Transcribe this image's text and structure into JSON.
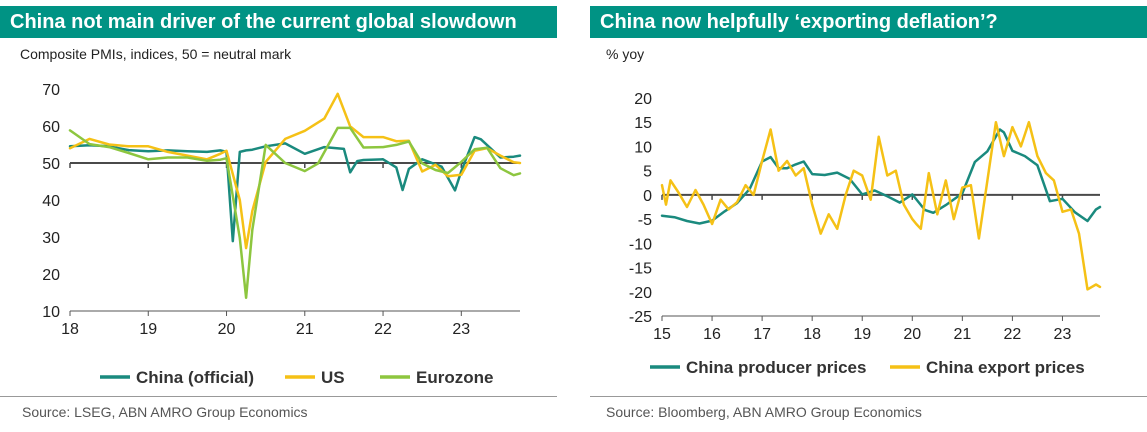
{
  "left": {
    "title": "China not main driver of the current global slowdown",
    "subtitle": "Composite PMIs, indices, 50 = neutral mark",
    "source": "Source: LSEG, ABN AMRO Group Economics"
  },
  "right": {
    "title": "China now helpfully ‘exporting deflation’?",
    "subtitle": "% yoy",
    "source": "Source: Bloomberg, ABN AMRO Group Economics"
  },
  "colors": {
    "header": "#009384",
    "teal": "#1a8a7e",
    "yellow": "#f5c116",
    "green": "#8dc63f",
    "axis": "#555555"
  },
  "chart_data": [
    {
      "type": "line",
      "title": "China not main driver of the current global slowdown",
      "subtitle": "Composite PMIs, indices, 50 = neutral mark",
      "ylim": [
        10,
        70
      ],
      "xlim": [
        2018,
        2023.75
      ],
      "yticks": [
        10,
        20,
        30,
        40,
        50,
        60,
        70
      ],
      "xtick_labels": [
        "18",
        "19",
        "20",
        "21",
        "22",
        "23"
      ],
      "reference_line": 50,
      "legend": "bottom",
      "grid": false,
      "series": [
        {
          "name": "China (official)",
          "color": "#1a8a7e",
          "x": [
            2018.0,
            2018.25,
            2018.5,
            2018.75,
            2019.0,
            2019.25,
            2019.5,
            2019.75,
            2019.92,
            2020.0,
            2020.08,
            2020.17,
            2020.25,
            2020.33,
            2020.5,
            2020.75,
            2021.0,
            2021.25,
            2021.5,
            2021.58,
            2021.67,
            2021.75,
            2022.0,
            2022.17,
            2022.25,
            2022.33,
            2022.5,
            2022.75,
            2022.92,
            2023.0,
            2023.17,
            2023.25,
            2023.5,
            2023.67,
            2023.75
          ],
          "y": [
            54.5,
            54.8,
            54.5,
            53.5,
            53.2,
            53.4,
            53.2,
            53.0,
            53.4,
            53.0,
            28.9,
            53.0,
            53.4,
            53.6,
            54.5,
            55.3,
            52.5,
            54.3,
            53.8,
            47.5,
            50.5,
            50.8,
            51.0,
            48.8,
            42.7,
            48.4,
            51.0,
            49.0,
            42.6,
            47.8,
            57.0,
            56.4,
            51.5,
            51.7,
            52.0
          ]
        },
        {
          "name": "US",
          "color": "#f5c116",
          "x": [
            2018.0,
            2018.25,
            2018.5,
            2018.75,
            2019.0,
            2019.25,
            2019.5,
            2019.75,
            2019.92,
            2020.0,
            2020.17,
            2020.25,
            2020.33,
            2020.5,
            2020.75,
            2021.0,
            2021.25,
            2021.42,
            2021.58,
            2021.75,
            2022.0,
            2022.17,
            2022.33,
            2022.5,
            2022.67,
            2022.83,
            2023.0,
            2023.17,
            2023.33,
            2023.5,
            2023.67,
            2023.75
          ],
          "y": [
            54.0,
            56.5,
            55.0,
            54.5,
            54.5,
            53.0,
            52.0,
            51.0,
            52.5,
            53.3,
            40.0,
            27.0,
            37.0,
            50.3,
            56.5,
            58.7,
            62.0,
            68.7,
            59.9,
            57.0,
            57.0,
            55.9,
            56.0,
            47.7,
            49.5,
            46.4,
            46.8,
            53.3,
            54.0,
            52.0,
            50.2,
            50.0
          ]
        },
        {
          "name": "Eurozone",
          "color": "#8dc63f",
          "x": [
            2018.0,
            2018.25,
            2018.5,
            2018.75,
            2019.0,
            2019.25,
            2019.5,
            2019.75,
            2019.92,
            2020.0,
            2020.17,
            2020.25,
            2020.33,
            2020.5,
            2020.75,
            2021.0,
            2021.17,
            2021.42,
            2021.58,
            2021.75,
            2022.0,
            2022.17,
            2022.33,
            2022.5,
            2022.67,
            2022.83,
            2023.0,
            2023.17,
            2023.33,
            2023.5,
            2023.67,
            2023.75
          ],
          "y": [
            58.8,
            55.1,
            54.3,
            52.7,
            51.0,
            51.5,
            51.5,
            50.6,
            50.9,
            51.3,
            29.7,
            13.6,
            31.9,
            54.9,
            50.0,
            47.8,
            49.9,
            59.5,
            59.5,
            54.2,
            54.3,
            54.9,
            55.8,
            49.9,
            48.1,
            47.3,
            50.3,
            53.7,
            54.1,
            48.6,
            46.7,
            47.2
          ]
        }
      ]
    },
    {
      "type": "line",
      "title": "China now helpfully ‘exporting deflation’?",
      "subtitle": "% yoy",
      "ylim": [
        -25,
        20
      ],
      "xlim": [
        2015,
        2023.75
      ],
      "yticks": [
        -25,
        -20,
        -15,
        -10,
        -5,
        0,
        5,
        10,
        15,
        20
      ],
      "xtick_labels": [
        "15",
        "16",
        "17",
        "18",
        "19",
        "20",
        "21",
        "22",
        "23"
      ],
      "reference_line": 0,
      "legend": "bottom",
      "grid": false,
      "series": [
        {
          "name": "China producer prices",
          "color": "#1a8a7e",
          "x": [
            2015.0,
            2015.25,
            2015.5,
            2015.75,
            2016.0,
            2016.25,
            2016.5,
            2016.75,
            2017.0,
            2017.17,
            2017.33,
            2017.5,
            2017.67,
            2017.83,
            2018.0,
            2018.25,
            2018.5,
            2018.75,
            2019.0,
            2019.25,
            2019.5,
            2019.75,
            2020.0,
            2020.25,
            2020.42,
            2020.67,
            2021.0,
            2021.25,
            2021.5,
            2021.75,
            2021.83,
            2022.0,
            2022.25,
            2022.5,
            2022.75,
            2023.0,
            2023.25,
            2023.5,
            2023.67,
            2023.75
          ],
          "y": [
            -4.3,
            -4.6,
            -5.4,
            -5.9,
            -5.3,
            -3.4,
            -1.7,
            1.2,
            6.9,
            7.8,
            5.5,
            5.5,
            6.3,
            6.9,
            4.3,
            4.1,
            4.6,
            3.3,
            0.1,
            0.9,
            -0.3,
            -1.6,
            0.1,
            -3.1,
            -3.7,
            -2.1,
            0.3,
            6.8,
            9.0,
            13.5,
            12.9,
            9.1,
            8.0,
            6.1,
            -1.3,
            -0.8,
            -3.6,
            -5.4,
            -3.0,
            -2.5
          ]
        },
        {
          "name": "China export prices",
          "color": "#f5c116",
          "x": [
            2015.0,
            2015.08,
            2015.17,
            2015.33,
            2015.5,
            2015.67,
            2015.83,
            2016.0,
            2016.17,
            2016.33,
            2016.5,
            2016.67,
            2016.83,
            2017.0,
            2017.17,
            2017.33,
            2017.5,
            2017.67,
            2017.83,
            2018.0,
            2018.17,
            2018.33,
            2018.5,
            2018.67,
            2018.83,
            2019.0,
            2019.17,
            2019.33,
            2019.5,
            2019.67,
            2019.83,
            2020.0,
            2020.08,
            2020.17,
            2020.33,
            2020.5,
            2020.67,
            2020.83,
            2021.0,
            2021.17,
            2021.33,
            2021.5,
            2021.67,
            2021.83,
            2022.0,
            2022.17,
            2022.33,
            2022.5,
            2022.67,
            2022.83,
            2023.0,
            2023.17,
            2023.33,
            2023.5,
            2023.67,
            2023.75
          ],
          "y": [
            2.0,
            -2.0,
            3.0,
            0.5,
            -2.5,
            1.0,
            -2.0,
            -6.0,
            -1.0,
            -3.0,
            -1.5,
            2.0,
            0.0,
            7.0,
            13.5,
            5.0,
            7.0,
            4.0,
            5.5,
            -2.0,
            -8.0,
            -4.0,
            -7.0,
            0.0,
            5.0,
            4.0,
            -1.0,
            12.0,
            4.0,
            5.0,
            -2.0,
            -5.0,
            -6.0,
            -7.0,
            4.5,
            -4.0,
            3.0,
            -5.0,
            1.5,
            2.0,
            -9.0,
            3.0,
            15.0,
            8.0,
            14.0,
            10.0,
            15.0,
            8.0,
            4.5,
            3.0,
            -3.5,
            -3.0,
            -8.0,
            -19.5,
            -18.5,
            -19.0
          ]
        }
      ]
    }
  ]
}
